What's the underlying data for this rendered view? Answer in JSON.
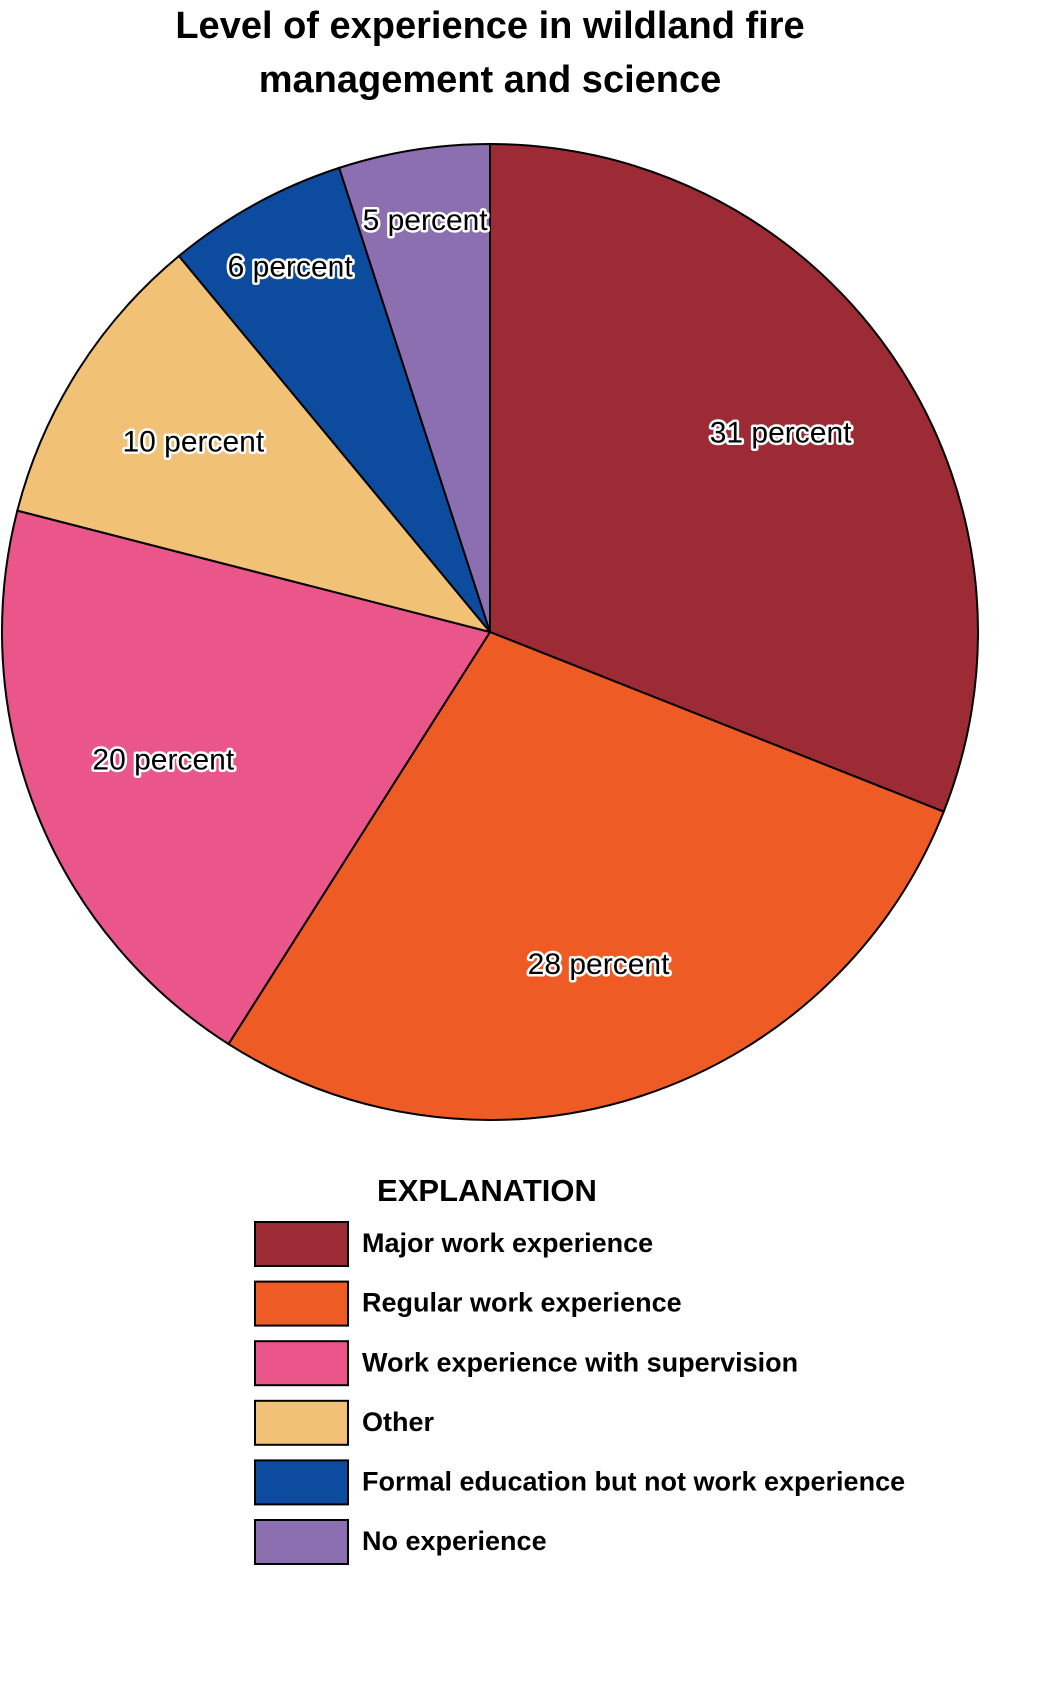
{
  "chart_data": {
    "type": "pie",
    "title": "Level of experience in wildland fire management and science",
    "categories": [
      "Major work experience",
      "Regular work experience",
      "Work experience with supervision",
      "Other",
      "Formal education but not work experience",
      "No experience"
    ],
    "values": [
      31,
      28,
      20,
      10,
      6,
      5
    ],
    "value_labels": [
      "31 percent",
      "28 percent",
      "20 percent",
      "10 percent",
      "6 percent",
      "5 percent"
    ],
    "colors": [
      "#9c2b35",
      "#ef5b24",
      "#ea558a",
      "#f1c175",
      "#0d4b9e",
      "#8b6fb0"
    ],
    "legend_title": "EXPLANATION"
  }
}
